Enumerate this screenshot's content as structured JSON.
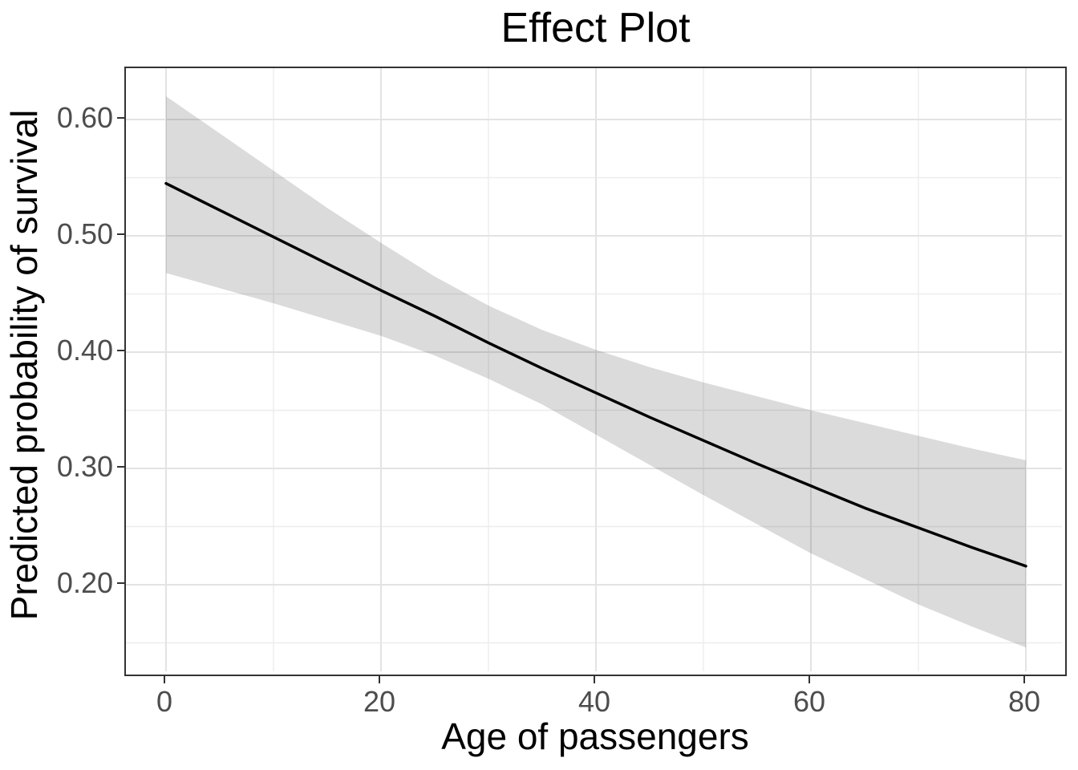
{
  "title": "Effect Plot",
  "x_axis": {
    "label": "Age of passengers",
    "ticks": [
      {
        "label": "0",
        "value": 0
      },
      {
        "label": "20",
        "value": 20
      },
      {
        "label": "40",
        "value": 40
      },
      {
        "label": "60",
        "value": 60
      },
      {
        "label": "80",
        "value": 80
      }
    ],
    "minor_ticks": [
      10,
      30,
      50,
      70
    ],
    "domain": [
      -3.7,
      83.7
    ]
  },
  "y_axis": {
    "label": "Predicted probability of survival",
    "ticks": [
      {
        "label": "0.20",
        "value": 0.2
      },
      {
        "label": "0.30",
        "value": 0.3
      },
      {
        "label": "0.40",
        "value": 0.4
      },
      {
        "label": "0.50",
        "value": 0.5
      },
      {
        "label": "0.60",
        "value": 0.6
      }
    ],
    "minor_ticks": [
      0.15,
      0.25,
      0.35,
      0.45,
      0.55
    ],
    "domain": [
      0.121,
      0.644
    ]
  },
  "colors": {
    "line": "#000000",
    "ribbon": "rgba(0,0,0,0.14)",
    "grid_major": "#e3e3e3",
    "grid_minor": "#ededed",
    "panel_border": "#333333",
    "tick": "#333333",
    "tick_label": "#4d4d4d",
    "title": "#000000",
    "background": "#ffffff"
  },
  "chart_data": {
    "type": "line",
    "title": "Effect Plot",
    "xlabel": "Age of passengers",
    "ylabel": "Predicted probability of survival",
    "xlim": [
      -3.7,
      83.7
    ],
    "ylim": [
      0.121,
      0.644
    ],
    "grid": true,
    "legend": false,
    "description": "Fitted predicted probability of survival versus passenger age (black line) with a shaded 95% confidence band (gray ribbon). Band is narrowest near age 30 and widens toward both extremes.",
    "x": [
      0,
      5,
      10,
      15,
      20,
      25,
      30,
      35,
      40,
      45,
      50,
      55,
      60,
      65,
      70,
      75,
      80
    ],
    "series": [
      {
        "name": "fit",
        "values": [
          0.545,
          0.522,
          0.499,
          0.476,
          0.453,
          0.431,
          0.408,
          0.386,
          0.365,
          0.344,
          0.324,
          0.304,
          0.285,
          0.266,
          0.249,
          0.232,
          0.216
        ]
      },
      {
        "name": "lower",
        "values": [
          0.468,
          0.455,
          0.442,
          0.428,
          0.414,
          0.397,
          0.377,
          0.355,
          0.329,
          0.303,
          0.277,
          0.252,
          0.227,
          0.205,
          0.183,
          0.164,
          0.146
        ]
      },
      {
        "name": "upper",
        "values": [
          0.62,
          0.588,
          0.556,
          0.524,
          0.494,
          0.465,
          0.44,
          0.419,
          0.402,
          0.387,
          0.374,
          0.362,
          0.35,
          0.339,
          0.328,
          0.317,
          0.307
        ]
      }
    ]
  }
}
